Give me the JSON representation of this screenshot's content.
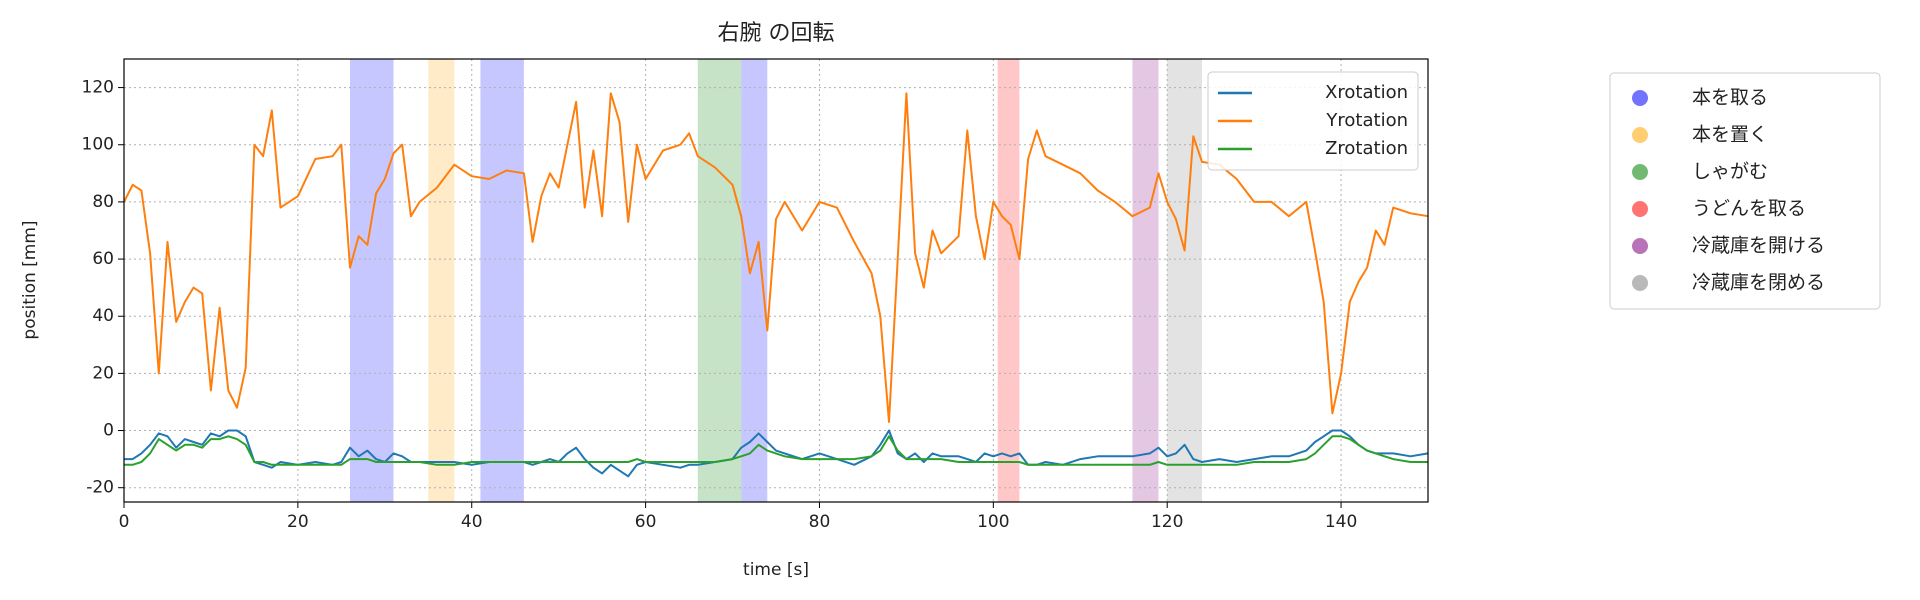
{
  "chart_data": {
    "type": "line",
    "title": "右腕 の回転",
    "x_label": "time [s]",
    "y_label": "position [mm]",
    "xlim": [
      0,
      150
    ],
    "ylim": [
      -25,
      130
    ],
    "xticks": [
      0,
      20,
      40,
      60,
      80,
      100,
      120,
      140
    ],
    "yticks": [
      -20,
      0,
      20,
      40,
      60,
      80,
      100,
      120
    ],
    "grid": true,
    "legend": "upper right",
    "x": [
      0,
      1,
      2,
      3,
      4,
      5,
      6,
      7,
      8,
      9,
      10,
      11,
      12,
      13,
      14,
      15,
      16,
      17,
      18,
      20,
      22,
      24,
      25,
      26,
      27,
      28,
      29,
      30,
      31,
      32,
      33,
      34,
      36,
      38,
      40,
      42,
      44,
      46,
      47,
      48,
      49,
      50,
      51,
      52,
      53,
      54,
      55,
      56,
      57,
      58,
      59,
      60,
      62,
      64,
      65,
      66,
      68,
      70,
      71,
      72,
      73,
      74,
      75,
      76,
      78,
      80,
      82,
      84,
      86,
      87,
      88,
      89,
      90,
      91,
      92,
      93,
      94,
      96,
      97,
      98,
      99,
      100,
      101,
      102,
      103,
      104,
      105,
      106,
      108,
      110,
      112,
      114,
      116,
      118,
      119,
      120,
      121,
      122,
      123,
      124,
      126,
      128,
      130,
      132,
      134,
      136,
      137,
      138,
      139,
      140,
      141,
      142,
      143,
      144,
      145,
      146,
      148,
      150
    ],
    "series": [
      {
        "name": "Xrotation",
        "color": "#1f77b4",
        "values": [
          -10,
          -10,
          -8,
          -5,
          -1,
          -2,
          -6,
          -3,
          -4,
          -5,
          -1,
          -2,
          0,
          0,
          -2,
          -11,
          -12,
          -13,
          -11,
          -12,
          -11,
          -12,
          -11,
          -6,
          -9,
          -7,
          -10,
          -11,
          -8,
          -9,
          -11,
          -11,
          -11,
          -11,
          -12,
          -11,
          -11,
          -11,
          -12,
          -11,
          -10,
          -11,
          -8,
          -6,
          -10,
          -13,
          -15,
          -12,
          -14,
          -16,
          -12,
          -11,
          -12,
          -13,
          -12,
          -12,
          -11,
          -10,
          -6,
          -4,
          -1,
          -4,
          -7,
          -8,
          -10,
          -8,
          -10,
          -12,
          -9,
          -5,
          0,
          -8,
          -10,
          -8,
          -11,
          -8,
          -9,
          -9,
          -10,
          -11,
          -8,
          -9,
          -8,
          -9,
          -8,
          -12,
          -12,
          -11,
          -12,
          -10,
          -9,
          -9,
          -9,
          -8,
          -6,
          -9,
          -8,
          -5,
          -10,
          -11,
          -10,
          -11,
          -10,
          -9,
          -9,
          -7,
          -4,
          -2,
          0,
          0,
          -2,
          -5,
          -7,
          -8,
          -8,
          -8,
          -9,
          -8
        ]
      },
      {
        "name": "Yrotation",
        "color": "#ff7f0e",
        "values": [
          80,
          86,
          84,
          62,
          20,
          66,
          38,
          45,
          50,
          48,
          14,
          43,
          14,
          8,
          22,
          100,
          96,
          112,
          78,
          82,
          95,
          96,
          100,
          57,
          68,
          65,
          83,
          88,
          97,
          100,
          75,
          80,
          85,
          93,
          89,
          88,
          91,
          90,
          66,
          82,
          90,
          85,
          100,
          115,
          78,
          98,
          75,
          118,
          108,
          73,
          100,
          88,
          98,
          100,
          104,
          96,
          92,
          86,
          75,
          55,
          66,
          35,
          74,
          80,
          70,
          80,
          78,
          66,
          55,
          40,
          3,
          60,
          118,
          62,
          50,
          70,
          62,
          68,
          105,
          75,
          60,
          80,
          75,
          72,
          60,
          95,
          105,
          96,
          93,
          90,
          84,
          80,
          75,
          78,
          90,
          80,
          74,
          63,
          103,
          94,
          93,
          88,
          80,
          80,
          75,
          80,
          63,
          45,
          6,
          20,
          45,
          52,
          57,
          70,
          65,
          78,
          76,
          75
        ]
      },
      {
        "name": "Zrotation",
        "color": "#2ca02c",
        "values": [
          -12,
          -12,
          -11,
          -8,
          -3,
          -5,
          -7,
          -5,
          -5,
          -6,
          -3,
          -3,
          -2,
          -3,
          -5,
          -11,
          -11,
          -12,
          -12,
          -12,
          -12,
          -12,
          -12,
          -10,
          -10,
          -10,
          -11,
          -11,
          -11,
          -11,
          -11,
          -11,
          -12,
          -12,
          -11,
          -11,
          -11,
          -11,
          -11,
          -11,
          -11,
          -11,
          -11,
          -11,
          -11,
          -11,
          -11,
          -11,
          -11,
          -11,
          -10,
          -11,
          -11,
          -11,
          -11,
          -11,
          -11,
          -10,
          -9,
          -8,
          -5,
          -7,
          -8,
          -9,
          -10,
          -10,
          -10,
          -10,
          -9,
          -7,
          -2,
          -7,
          -10,
          -10,
          -10,
          -10,
          -10,
          -11,
          -11,
          -11,
          -11,
          -11,
          -11,
          -11,
          -11,
          -12,
          -12,
          -12,
          -12,
          -12,
          -12,
          -12,
          -12,
          -12,
          -11,
          -12,
          -12,
          -12,
          -12,
          -12,
          -12,
          -12,
          -11,
          -11,
          -11,
          -10,
          -8,
          -5,
          -2,
          -2,
          -3,
          -5,
          -7,
          -8,
          -9,
          -10,
          -11,
          -11
        ]
      }
    ],
    "spans": [
      {
        "name": "本を取る",
        "color": "#0000ff",
        "ranges": [
          [
            26,
            31
          ],
          [
            41,
            46
          ],
          [
            71,
            74
          ]
        ]
      },
      {
        "name": "本を置く",
        "color": "#ffa500",
        "ranges": [
          [
            35,
            38
          ]
        ]
      },
      {
        "name": "しゃがむ",
        "color": "#008000",
        "ranges": [
          [
            66,
            71
          ]
        ]
      },
      {
        "name": "うどんを取る",
        "color": "#ff0000",
        "ranges": [
          [
            100.5,
            103
          ]
        ]
      },
      {
        "name": "冷蔵庫を開ける",
        "color": "#800080",
        "ranges": [
          [
            116,
            119
          ]
        ]
      },
      {
        "name": "冷蔵庫を閉める",
        "color": "#808080",
        "ranges": [
          [
            120,
            124
          ]
        ]
      }
    ]
  }
}
